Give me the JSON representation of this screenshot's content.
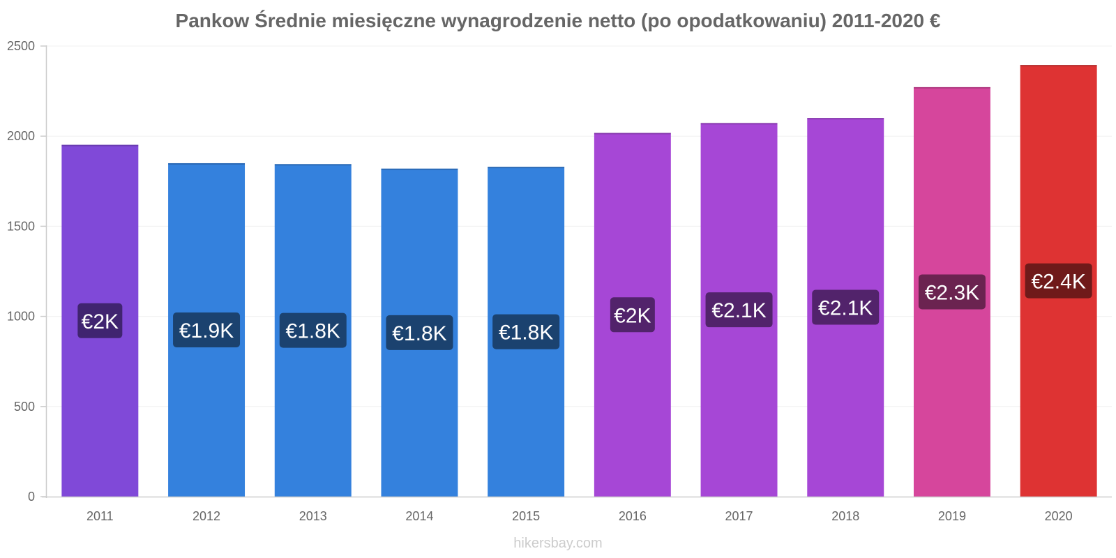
{
  "chart_data": {
    "type": "bar",
    "title": "Pankow Średnie miesięczne wynagrodzenie netto (po opodatkowaniu) 2011-2020 €",
    "categories": [
      "2011",
      "2012",
      "2013",
      "2014",
      "2015",
      "2016",
      "2017",
      "2018",
      "2019",
      "2020"
    ],
    "values": [
      1952,
      1850,
      1845,
      1820,
      1830,
      2018,
      2073,
      2101,
      2272,
      2395
    ],
    "data_labels": [
      "€2K",
      "€1.9K",
      "€1.8K",
      "€1.8K",
      "€1.8K",
      "€2K",
      "€2.1K",
      "€2.1K",
      "€2.3K",
      "€2.4K"
    ],
    "bar_colors": [
      "#8049d8",
      "#3481dd",
      "#3481dd",
      "#3481dd",
      "#3481dd",
      "#a647d6",
      "#a647d6",
      "#a647d6",
      "#d6469c",
      "#de3333"
    ],
    "label_bg_colors": [
      "#402470",
      "#1b426f",
      "#1b426f",
      "#1b426f",
      "#1b426f",
      "#52236b",
      "#52236b",
      "#52236b",
      "#6b2350",
      "#6f1a1a"
    ],
    "ylim": [
      0,
      2500
    ],
    "yticks": [
      0,
      500,
      1000,
      1500,
      2000,
      2500
    ],
    "xlabel": "",
    "ylabel": "",
    "grid": true,
    "legend": "none"
  },
  "watermark": "hikersbay.com"
}
